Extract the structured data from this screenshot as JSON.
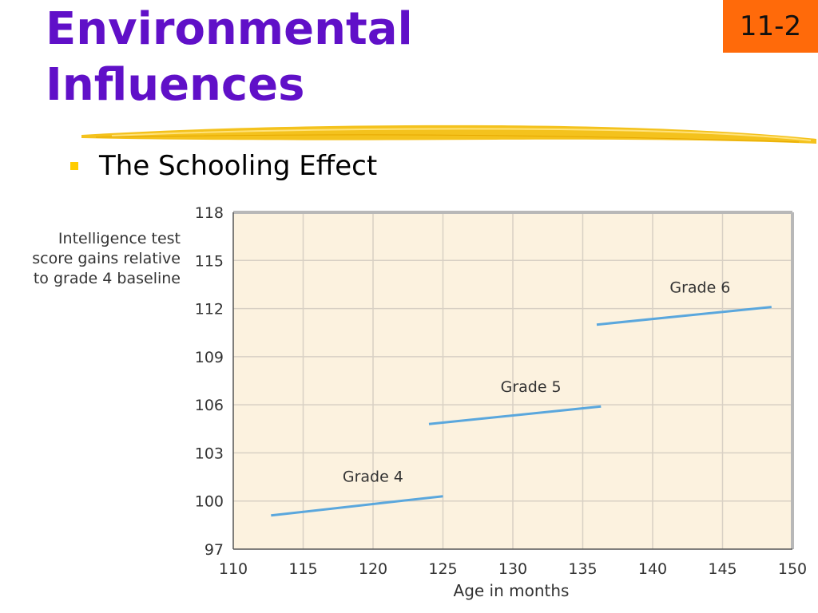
{
  "slide": {
    "title_line1": "Environmental",
    "title_line2": "Influences",
    "number": "11-2",
    "bullet": "The Schooling Effect"
  },
  "colors": {
    "title": "#6010c8",
    "badge": "#ff6a0a",
    "plot_bg": "#fcf2df",
    "grid": "#d8d0c4",
    "line": "#5aa7dd",
    "bullet": "#ffcc00"
  },
  "chart_data": {
    "type": "line",
    "title": "",
    "xlabel": "Age in months",
    "ylabel": [
      "Intelligence test",
      "score gains relative",
      "to grade 4 baseline"
    ],
    "xlim": [
      110,
      150
    ],
    "ylim": [
      97,
      118
    ],
    "xticks": [
      110,
      115,
      120,
      125,
      130,
      135,
      140,
      145,
      150
    ],
    "yticks": [
      97,
      100,
      103,
      106,
      109,
      112,
      115,
      118
    ],
    "grid": true,
    "series": [
      {
        "name": "Grade 4",
        "x": [
          112.7,
          125
        ],
        "y": [
          99.1,
          100.3
        ]
      },
      {
        "name": "Grade 5",
        "x": [
          124,
          136.3
        ],
        "y": [
          104.8,
          105.9
        ]
      },
      {
        "name": "Grade 6",
        "x": [
          136,
          148.5
        ],
        "y": [
          111.0,
          112.1
        ]
      }
    ]
  }
}
